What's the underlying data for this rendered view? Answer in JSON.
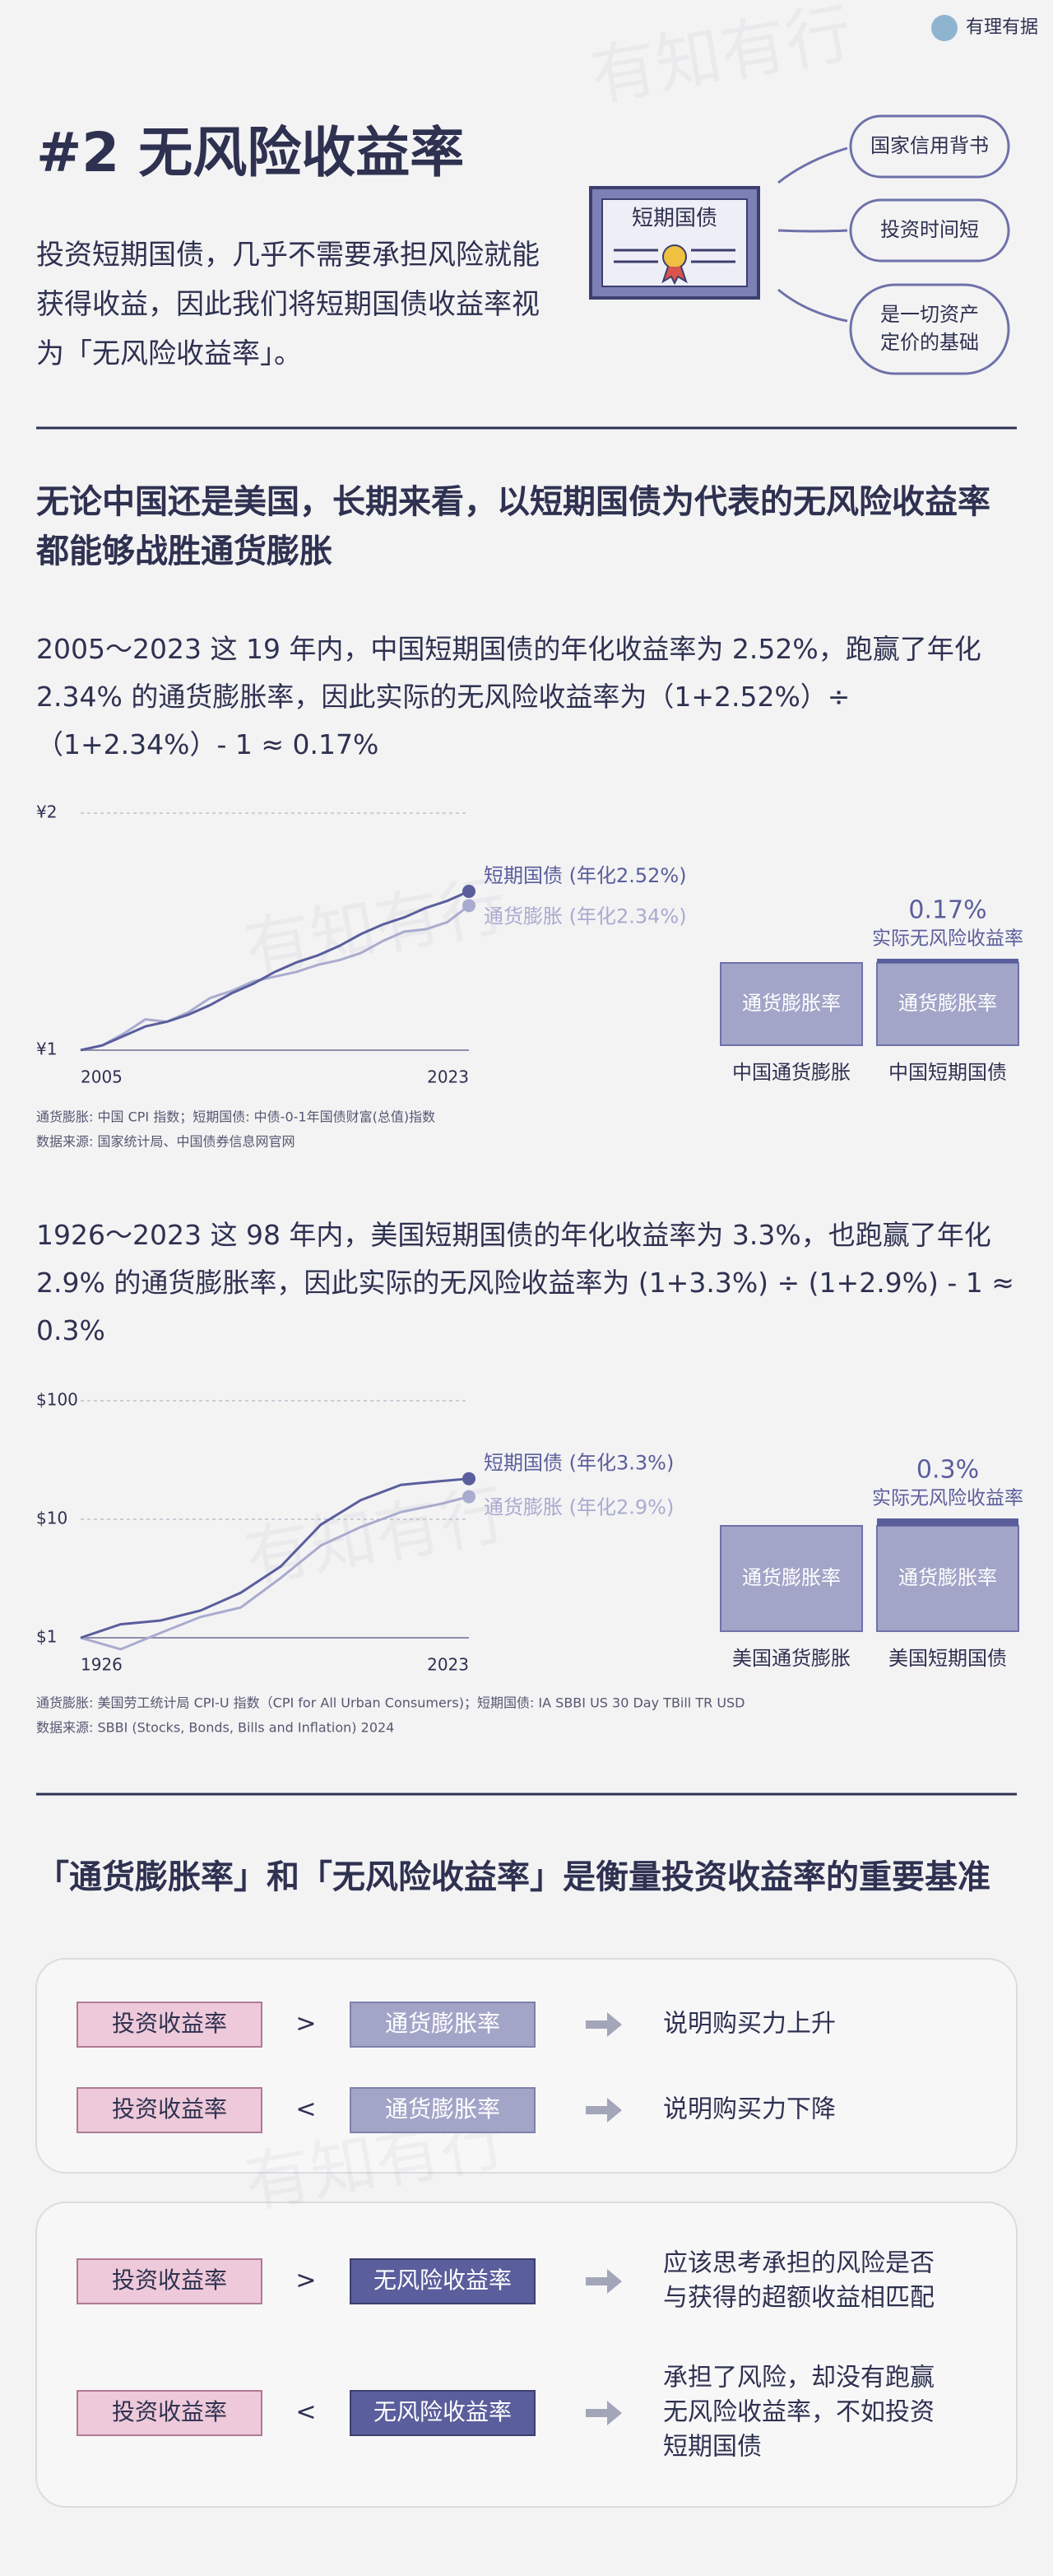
{
  "logo": "有理有据",
  "watermark": "有知有行",
  "header": {
    "title": "#2 无风险收益率",
    "intro": "投资短期国债，几乎不需要承担风险就能获得收益，因此我们将短期国债收益率视为「无风险收益率」。",
    "certificate": "短期国债",
    "bubbles": [
      [
        "国家信用背书"
      ],
      [
        "投资时间短"
      ],
      [
        "是一切资产",
        "定价的基础"
      ]
    ]
  },
  "section1": {
    "heading": "无论中国还是美国，长期来看，以短期国债为代表的无风险收益率都能够战胜通货膨胀",
    "china_text": "2005～2023 这 19 年内，中国短期国债的年化收益率为 2.52%，跑赢了年化 2.34% 的通货膨胀率，因此实际的无风险收益率为（1+2.52%）÷（1+2.34%）- 1 ≈ 0.17%",
    "china_notes": [
      "通货膨胀: 中国 CPI 指数；短期国债: 中债-0-1年国债财富(总值)指数",
      "数据来源: 国家统计局、中国债券信息网官网"
    ],
    "us_text": "1926～2023 这 98 年内，美国短期国债的年化收益率为 3.3%，也跑赢了年化 2.9% 的通货膨胀率，因此实际的无风险收益率为 (1+3.3%) ÷ (1+2.9%) - 1 ≈ 0.3%",
    "us_notes": [
      "通货膨胀: 美国劳工统计局 CPI-U 指数（CPI for All Urban Consumers)；短期国债: IA SBBI US 30 Day TBill TR USD",
      "数据来源: SBBI (Stocks, Bonds, Bills and Inflation) 2024"
    ]
  },
  "chart_data": [
    {
      "type": "line",
      "x": [
        2005,
        2006,
        2007,
        2008,
        2009,
        2010,
        2011,
        2012,
        2013,
        2014,
        2015,
        2016,
        2017,
        2018,
        2019,
        2020,
        2021,
        2022,
        2023
      ],
      "xlim": [
        2005,
        2023
      ],
      "xticks": [
        2005,
        2023
      ],
      "ylim": [
        1,
        2
      ],
      "yticks": [
        {
          "value": 1,
          "label": "¥1"
        },
        {
          "value": 2,
          "label": "¥2"
        }
      ],
      "log_scale": false,
      "grid": true,
      "series": [
        {
          "name": "短期国债 (年化2.52%)",
          "color": "#5a5e9c",
          "values": [
            1.0,
            1.02,
            1.06,
            1.1,
            1.12,
            1.15,
            1.19,
            1.24,
            1.28,
            1.33,
            1.37,
            1.4,
            1.44,
            1.49,
            1.53,
            1.56,
            1.6,
            1.63,
            1.67
          ]
        },
        {
          "name": "通货膨胀 (年化2.34%)",
          "color": "#a9abcf",
          "values": [
            1.0,
            1.02,
            1.07,
            1.13,
            1.12,
            1.16,
            1.22,
            1.25,
            1.29,
            1.31,
            1.33,
            1.36,
            1.38,
            1.41,
            1.46,
            1.5,
            1.51,
            1.54,
            1.61
          ]
        }
      ],
      "comparison": {
        "categories": [
          "中国通货膨胀",
          "中国短期国债"
        ],
        "bar_label": "通货膨胀率",
        "value": 0.17,
        "value_label": "0.17%",
        "caption": "实际无风险收益率"
      }
    },
    {
      "type": "line",
      "x": [
        1926,
        1936,
        1946,
        1956,
        1966,
        1976,
        1986,
        1996,
        2006,
        2016,
        2023
      ],
      "xlim": [
        1926,
        2023
      ],
      "xticks": [
        1926,
        2023
      ],
      "ylim": [
        1,
        100
      ],
      "yticks": [
        {
          "value": 1,
          "label": "$1"
        },
        {
          "value": 10,
          "label": "$10"
        },
        {
          "value": 100,
          "label": "$100"
        }
      ],
      "log_scale": true,
      "grid": true,
      "series": [
        {
          "name": "短期国债 (年化3.3%)",
          "color": "#5a5e9c",
          "values": [
            1.0,
            1.3,
            1.4,
            1.7,
            2.4,
            4.0,
            9.0,
            14.5,
            19.5,
            21,
            22
          ]
        },
        {
          "name": "通货膨胀 (年化2.9%)",
          "color": "#a9abcf",
          "values": [
            1.0,
            0.8,
            1.1,
            1.5,
            1.8,
            3.2,
            6.0,
            8.6,
            11.5,
            13.5,
            15.5
          ]
        }
      ],
      "comparison": {
        "categories": [
          "美国通货膨胀",
          "美国短期国债"
        ],
        "bar_label": "通货膨胀率",
        "value": 0.3,
        "value_label": "0.3%",
        "caption": "实际无风险收益率"
      }
    }
  ],
  "section2": {
    "heading": "「通货膨胀率」和「无风险收益率」是衡量投资收益率的重要基准",
    "panels": [
      [
        {
          "left": "投资收益率",
          "op": ">",
          "right": "通货膨胀率",
          "result": [
            "说明购买力上升"
          ]
        },
        {
          "left": "投资收益率",
          "op": "<",
          "right": "通货膨胀率",
          "result": [
            "说明购买力下降"
          ]
        }
      ],
      [
        {
          "left": "投资收益率",
          "op": ">",
          "right": "无风险收益率",
          "result": [
            "应该思考承担的风险是否",
            "与获得的超额收益相匹配"
          ]
        },
        {
          "left": "投资收益率",
          "op": "<",
          "right": "无风险收益率",
          "result": [
            "承担了风险，却没有跑赢",
            "无风险收益率，不如投资",
            "短期国债"
          ]
        }
      ]
    ]
  }
}
